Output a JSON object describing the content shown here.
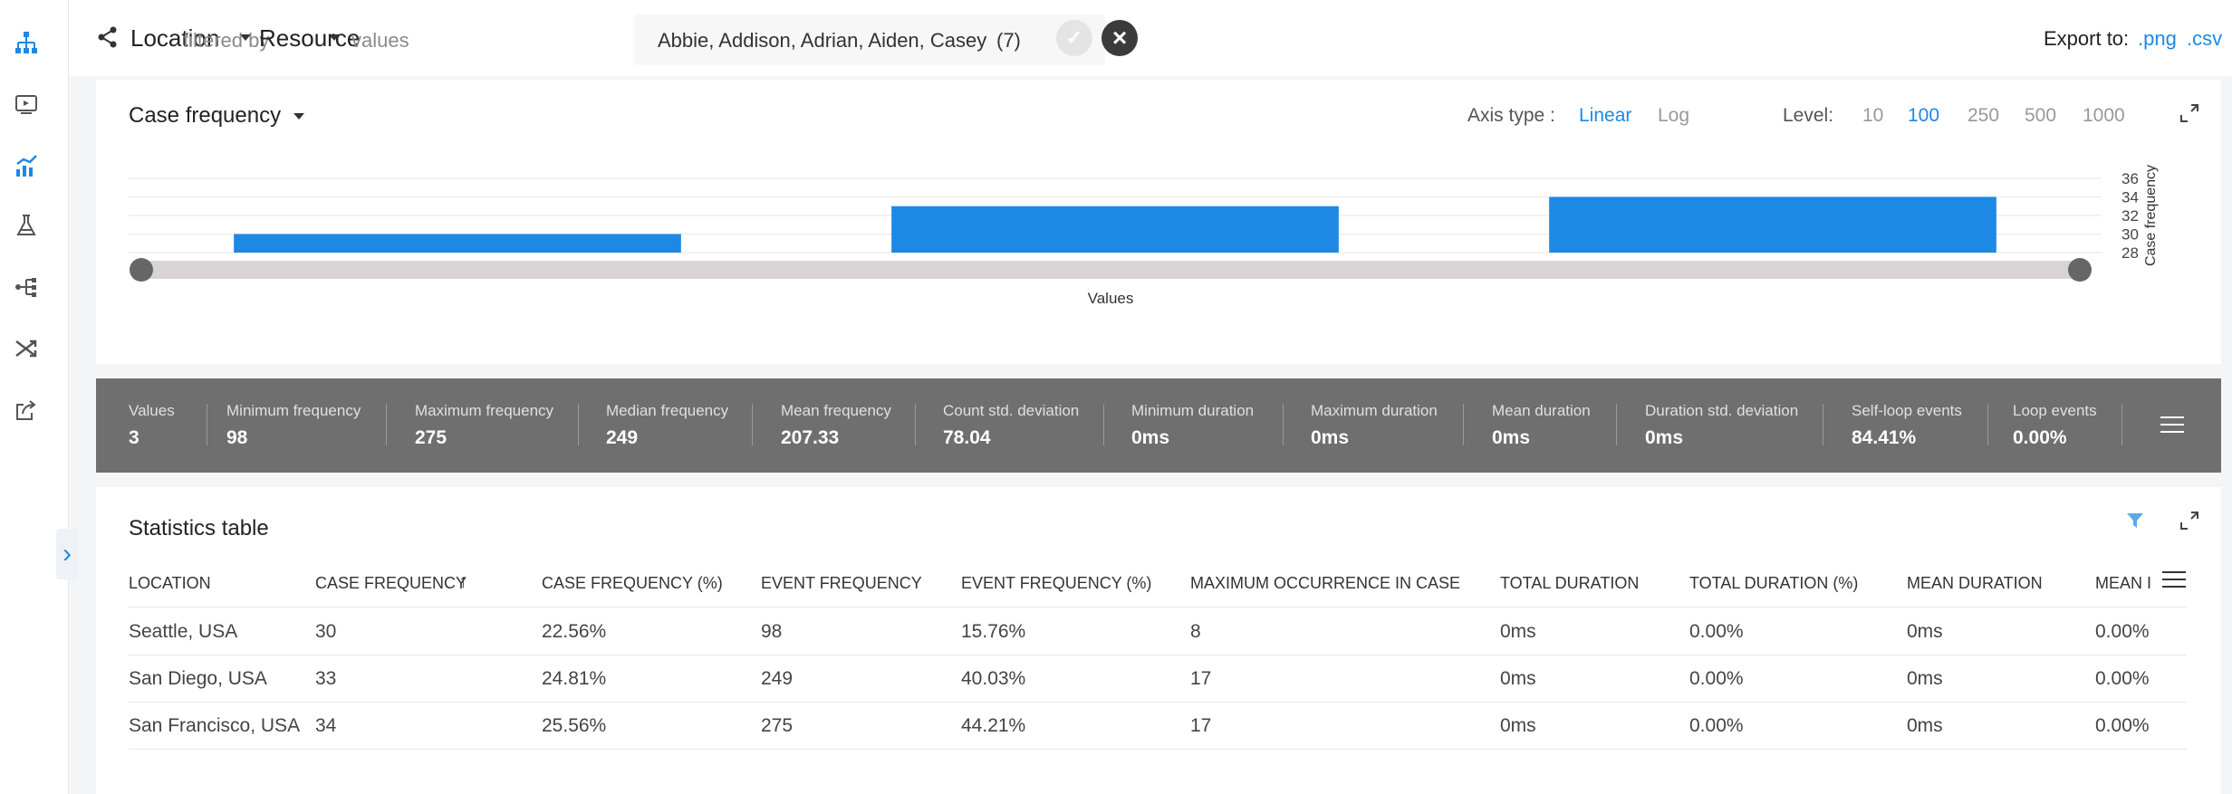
{
  "topbar": {
    "dimension": "Location",
    "filtered_by": "filtered by",
    "filter_attribute": "Resource",
    "values_label": "values",
    "values_text": "Abbie, Addison, Adrian, Aiden, Casey",
    "values_count": "(7)",
    "export_label": "Export to:",
    "export_png": ".png",
    "export_csv": ".csv"
  },
  "chart_card": {
    "title": "Case frequency",
    "axis_type_label": "Axis type :",
    "axis_options": [
      "Linear",
      "Log"
    ],
    "axis_selected": "Linear",
    "level_label": "Level:",
    "level_options": [
      "10",
      "100",
      "250",
      "500",
      "1000"
    ],
    "level_selected": "100"
  },
  "chart_data": {
    "type": "bar",
    "categories": [
      "Seattle, USA",
      "San Diego, USA",
      "San Francisco, USA"
    ],
    "values": [
      30,
      33,
      34
    ],
    "xlabel": "Values",
    "ylabel": "Case frequency",
    "ylim": [
      28,
      36
    ],
    "yticks": [
      "36",
      "34",
      "32",
      "30",
      "28"
    ],
    "y_axis_side": "right",
    "grid": true,
    "bar_color": "#1e88e5"
  },
  "stats": [
    {
      "label": "Values",
      "value": "3"
    },
    {
      "label": "Minimum frequency",
      "value": "98"
    },
    {
      "label": "Maximum frequency",
      "value": "275"
    },
    {
      "label": "Median frequency",
      "value": "249"
    },
    {
      "label": "Mean frequency",
      "value": "207.33"
    },
    {
      "label": "Count std. deviation",
      "value": "78.04"
    },
    {
      "label": "Minimum duration",
      "value": "0ms"
    },
    {
      "label": "Maximum duration",
      "value": "0ms"
    },
    {
      "label": "Mean duration",
      "value": "0ms"
    },
    {
      "label": "Duration std. deviation",
      "value": "0ms"
    },
    {
      "label": "Self-loop events",
      "value": "84.41%"
    },
    {
      "label": "Loop events",
      "value": "0.00%"
    }
  ],
  "table": {
    "title": "Statistics table",
    "headers": [
      "LOCATION",
      "CASE FREQUENCY",
      "CASE FREQUENCY (%)",
      "EVENT FREQUENCY",
      "EVENT FREQUENCY (%)",
      "MAXIMUM OCCURRENCE IN CASE",
      "TOTAL DURATION",
      "TOTAL DURATION (%)",
      "MEAN DURATION",
      "MEAN I"
    ],
    "sorted_column": "CASE FREQUENCY",
    "rows": [
      [
        "Seattle, USA",
        "30",
        "22.56%",
        "98",
        "15.76%",
        "8",
        "0ms",
        "0.00%",
        "0ms",
        "0.00%"
      ],
      [
        "San Diego, USA",
        "33",
        "24.81%",
        "249",
        "40.03%",
        "17",
        "0ms",
        "0.00%",
        "0ms",
        "0.00%"
      ],
      [
        "San Francisco, USA",
        "34",
        "25.56%",
        "275",
        "44.21%",
        "17",
        "0ms",
        "0.00%",
        "0ms",
        "0.00%"
      ]
    ]
  },
  "colors": {
    "accent": "#1e88e5",
    "stats_bar": "#6f6f6f"
  },
  "sidebar": {
    "icons": [
      "process-map-icon",
      "dashboard-icon",
      "statistics-icon",
      "lab-icon",
      "variants-icon",
      "shuffle-icon",
      "export-icon"
    ],
    "active": "statistics-icon"
  }
}
